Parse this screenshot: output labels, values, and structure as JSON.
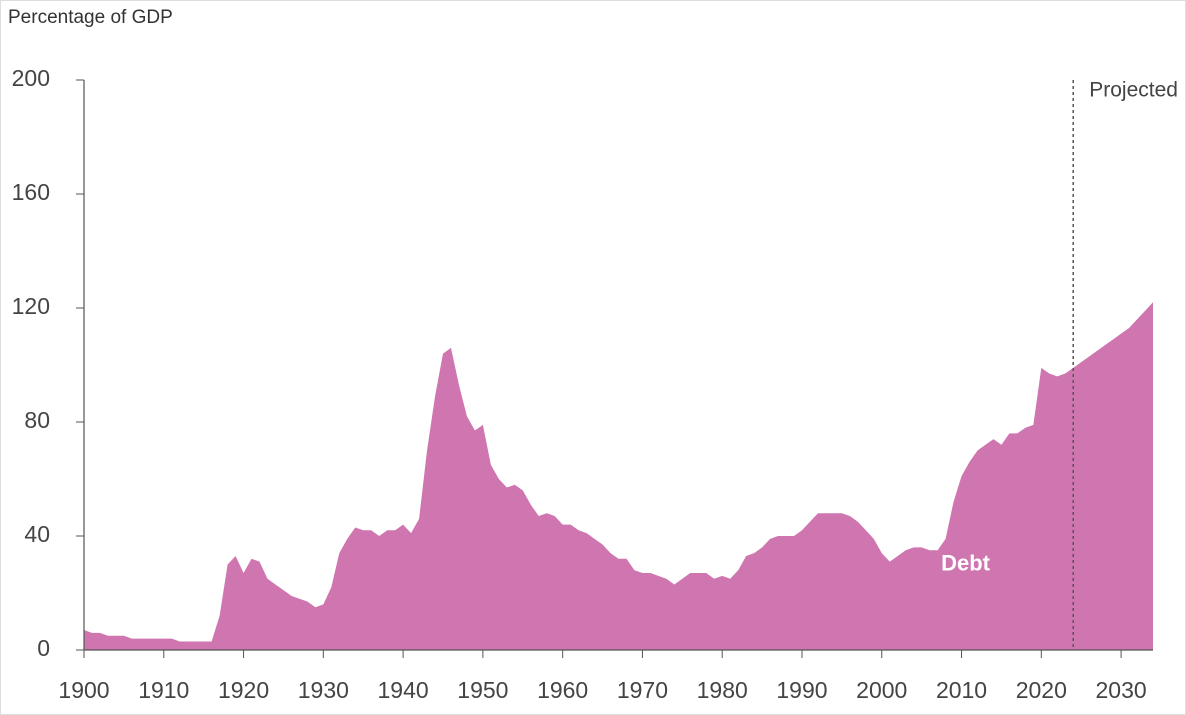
{
  "chart_data": {
    "type": "area",
    "y_axis_label": "Percentage of GDP",
    "x": [
      1900,
      1901,
      1902,
      1903,
      1904,
      1905,
      1906,
      1907,
      1908,
      1909,
      1910,
      1911,
      1912,
      1913,
      1914,
      1915,
      1916,
      1917,
      1918,
      1919,
      1920,
      1921,
      1922,
      1923,
      1924,
      1925,
      1926,
      1927,
      1928,
      1929,
      1930,
      1931,
      1932,
      1933,
      1934,
      1935,
      1936,
      1937,
      1938,
      1939,
      1940,
      1941,
      1942,
      1943,
      1944,
      1945,
      1946,
      1947,
      1948,
      1949,
      1950,
      1951,
      1952,
      1953,
      1954,
      1955,
      1956,
      1957,
      1958,
      1959,
      1960,
      1961,
      1962,
      1963,
      1964,
      1965,
      1966,
      1967,
      1968,
      1969,
      1970,
      1971,
      1972,
      1973,
      1974,
      1975,
      1976,
      1977,
      1978,
      1979,
      1980,
      1981,
      1982,
      1983,
      1984,
      1985,
      1986,
      1987,
      1988,
      1989,
      1990,
      1991,
      1992,
      1993,
      1994,
      1995,
      1996,
      1997,
      1998,
      1999,
      2000,
      2001,
      2002,
      2003,
      2004,
      2005,
      2006,
      2007,
      2008,
      2009,
      2010,
      2011,
      2012,
      2013,
      2014,
      2015,
      2016,
      2017,
      2018,
      2019,
      2020,
      2021,
      2022,
      2023,
      2024,
      2025,
      2026,
      2027,
      2028,
      2029,
      2030,
      2031,
      2032,
      2033,
      2034
    ],
    "series": [
      {
        "name": "Debt",
        "color": "#cf76b0",
        "values": [
          7,
          6,
          6,
          5,
          5,
          5,
          4,
          4,
          4,
          4,
          4,
          4,
          3,
          3,
          3,
          3,
          3,
          12,
          30,
          33,
          27,
          32,
          31,
          25,
          23,
          21,
          19,
          18,
          17,
          15,
          16,
          22,
          34,
          39,
          43,
          42,
          42,
          40,
          42,
          42,
          44,
          41,
          46,
          70,
          89,
          104,
          106,
          93,
          82,
          77,
          79,
          65,
          60,
          57,
          58,
          56,
          51,
          47,
          48,
          47,
          44,
          44,
          42,
          41,
          39,
          37,
          34,
          32,
          32,
          28,
          27,
          27,
          26,
          25,
          23,
          25,
          27,
          27,
          27,
          25,
          26,
          25,
          28,
          33,
          34,
          36,
          39,
          40,
          40,
          40,
          42,
          45,
          48,
          48,
          48,
          48,
          47,
          45,
          42,
          39,
          34,
          31,
          33,
          35,
          36,
          36,
          35,
          35,
          39,
          52,
          61,
          66,
          70,
          72,
          74,
          72,
          76,
          76,
          78,
          79,
          99,
          97,
          96,
          97,
          99,
          101,
          103,
          105,
          107,
          109,
          111,
          113,
          116,
          119,
          122
        ]
      }
    ],
    "projection_label": "Projected",
    "projection_start": 2024,
    "xlim": [
      1900,
      2034
    ],
    "xticks": [
      1900,
      1910,
      1920,
      1930,
      1940,
      1950,
      1960,
      1970,
      1980,
      1990,
      2000,
      2010,
      2020,
      2030
    ],
    "ylim": [
      0,
      200
    ],
    "yticks": [
      0,
      40,
      80,
      120,
      160,
      200
    ]
  }
}
